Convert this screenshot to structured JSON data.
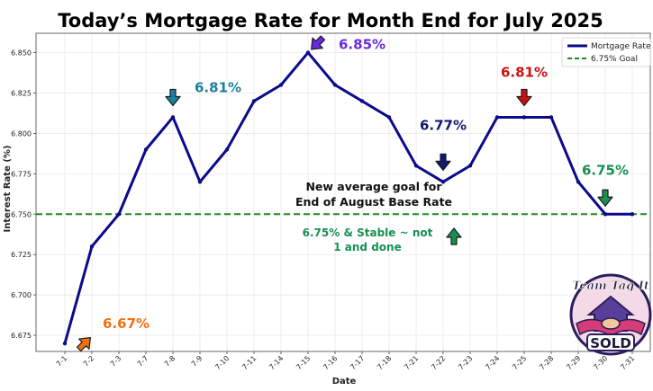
{
  "chart_data": {
    "type": "line",
    "title": "Today’s Mortgage Rate for Month End for July 2025",
    "xlabel": "Date",
    "ylabel": "Interest Rate (%)",
    "categories": [
      "7-1",
      "7-2",
      "7-3",
      "7-7",
      "7-8",
      "7-9",
      "7-10",
      "7-11",
      "7-14",
      "7-15",
      "7-16",
      "7-17",
      "7-18",
      "7-21",
      "7-22",
      "7-23",
      "7-24",
      "7-25",
      "7-28",
      "7-29",
      "7-30",
      "7-31"
    ],
    "series": [
      {
        "name": "Mortgage Rate",
        "color": "#0a0a8c",
        "values": [
          6.67,
          6.73,
          6.75,
          6.79,
          6.81,
          6.77,
          6.79,
          6.82,
          6.83,
          6.85,
          6.83,
          6.82,
          6.81,
          6.78,
          6.77,
          6.78,
          6.81,
          6.81,
          6.81,
          6.77,
          6.75,
          6.75
        ]
      }
    ],
    "goal": {
      "name": "6.75% Goal",
      "value": 6.75,
      "color": "#1e8c1e"
    },
    "ylim": [
      6.665,
      6.862
    ],
    "yticks": [
      "6.675",
      "6.700",
      "6.725",
      "6.750",
      "6.775",
      "6.800",
      "6.825",
      "6.850"
    ],
    "grid": true,
    "legend_position": "top-right",
    "annotations": [
      {
        "text": "6.67%",
        "color": "#f07010",
        "point": "7-1"
      },
      {
        "text": "6.81%",
        "color": "#1a7fa0",
        "point": "7-8"
      },
      {
        "text": "6.85%",
        "color": "#6a2be0",
        "point": "7-15"
      },
      {
        "text": "6.77%",
        "color": "#101a6e",
        "point": "7-22"
      },
      {
        "text": "6.81%",
        "color": "#cc1010",
        "point": "7-25"
      },
      {
        "text": "6.75%",
        "color": "#179050",
        "point": "7-30"
      }
    ],
    "notes": [
      {
        "lines": [
          "New average goal for",
          "End of August Base Rate"
        ],
        "color": "#111111"
      },
      {
        "lines": [
          "6.75% & Stable ~ not",
          "1 and done"
        ],
        "color": "#179050"
      }
    ]
  },
  "logo": {
    "top_text": "Team Tag It",
    "bottom_text": "SOLD"
  }
}
